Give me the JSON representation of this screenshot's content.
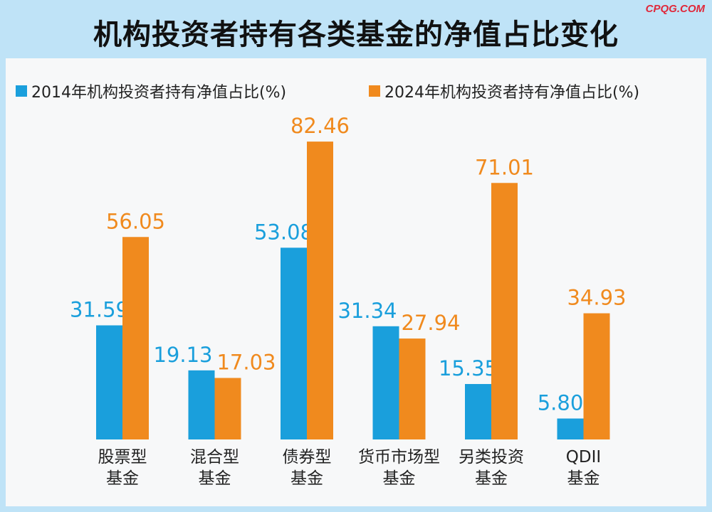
{
  "title": "机构投资者持有各类基金的净值占比变化",
  "watermark": "CPQG.COM",
  "colors": {
    "series_2014": "#1a9fdc",
    "series_2024": "#f08a1e",
    "frame": "#bfe3f7"
  },
  "chart_data": {
    "type": "bar",
    "categories": [
      [
        "股票型",
        "基金"
      ],
      [
        "混合型",
        "基金"
      ],
      [
        "债券型",
        "基金"
      ],
      [
        "货币市场型",
        "基金"
      ],
      [
        "另类投资",
        "基金"
      ],
      [
        "QDII",
        "基金"
      ]
    ],
    "series": [
      {
        "name": "2014年机构投资者持有净值占比(%)",
        "values": [
          31.59,
          19.13,
          53.08,
          31.34,
          15.35,
          5.8
        ],
        "labels": [
          "31.59",
          "19.13",
          "53.08",
          "31.34",
          "15.35",
          "5.80"
        ]
      },
      {
        "name": "2024年机构投资者持有净值占比(%)",
        "values": [
          56.05,
          17.03,
          82.46,
          27.94,
          71.01,
          34.93
        ],
        "labels": [
          "56.05",
          "17.03",
          "82.46",
          "27.94",
          "71.01",
          "34.93"
        ]
      }
    ],
    "legend": "top-left",
    "grid": false
  }
}
